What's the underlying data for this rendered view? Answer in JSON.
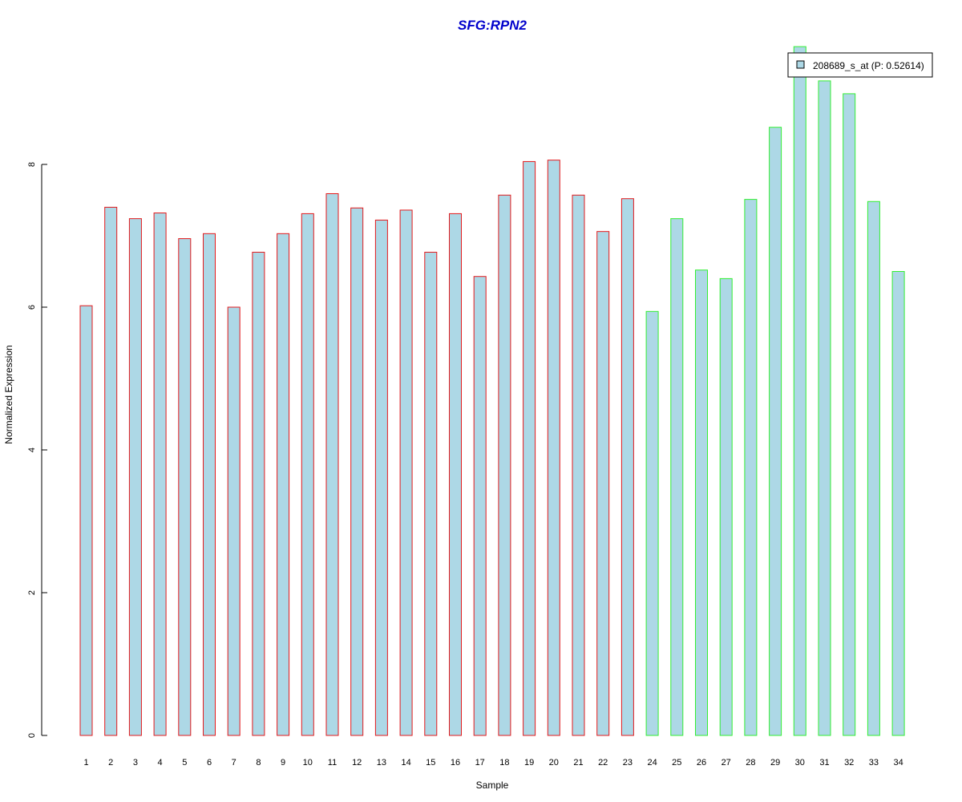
{
  "chart_data": {
    "type": "bar",
    "title": "SFG:RPN2",
    "xlabel": "Sample",
    "ylabel": "Normalized Expression",
    "ylim": [
      0,
      9.7
    ],
    "yticks": [
      0,
      2,
      4,
      6,
      8
    ],
    "categories": [
      "1",
      "2",
      "3",
      "4",
      "5",
      "6",
      "7",
      "8",
      "9",
      "10",
      "11",
      "12",
      "13",
      "14",
      "15",
      "16",
      "17",
      "18",
      "19",
      "20",
      "21",
      "22",
      "23",
      "24",
      "25",
      "26",
      "27",
      "28",
      "29",
      "30",
      "31",
      "32",
      "33",
      "34"
    ],
    "series": [
      {
        "name": "208689_s_at (P: 0.52614)",
        "values": [
          6.02,
          7.4,
          7.24,
          7.32,
          6.96,
          7.03,
          6.0,
          6.77,
          7.03,
          7.31,
          7.59,
          7.39,
          7.22,
          7.36,
          6.77,
          7.31,
          6.43,
          7.57,
          8.04,
          8.06,
          7.57,
          7.06,
          7.52,
          5.94,
          7.24,
          6.52,
          6.4,
          7.51,
          8.52,
          9.65,
          9.17,
          8.99,
          7.48,
          6.5
        ]
      }
    ],
    "group_outline": [
      "red",
      "red",
      "red",
      "red",
      "red",
      "red",
      "red",
      "red",
      "red",
      "red",
      "red",
      "red",
      "red",
      "red",
      "red",
      "red",
      "red",
      "red",
      "red",
      "red",
      "red",
      "red",
      "red",
      "green",
      "green",
      "green",
      "green",
      "green",
      "green",
      "green",
      "green",
      "green",
      "green",
      "green"
    ],
    "grid": false,
    "legend_position": "top-right"
  },
  "colors": {
    "title": "#0000CC",
    "bar_fill": "#ADD8E6",
    "outline_red": "#E31A1C",
    "outline_green": "#33EE33",
    "axis": "#000000"
  }
}
